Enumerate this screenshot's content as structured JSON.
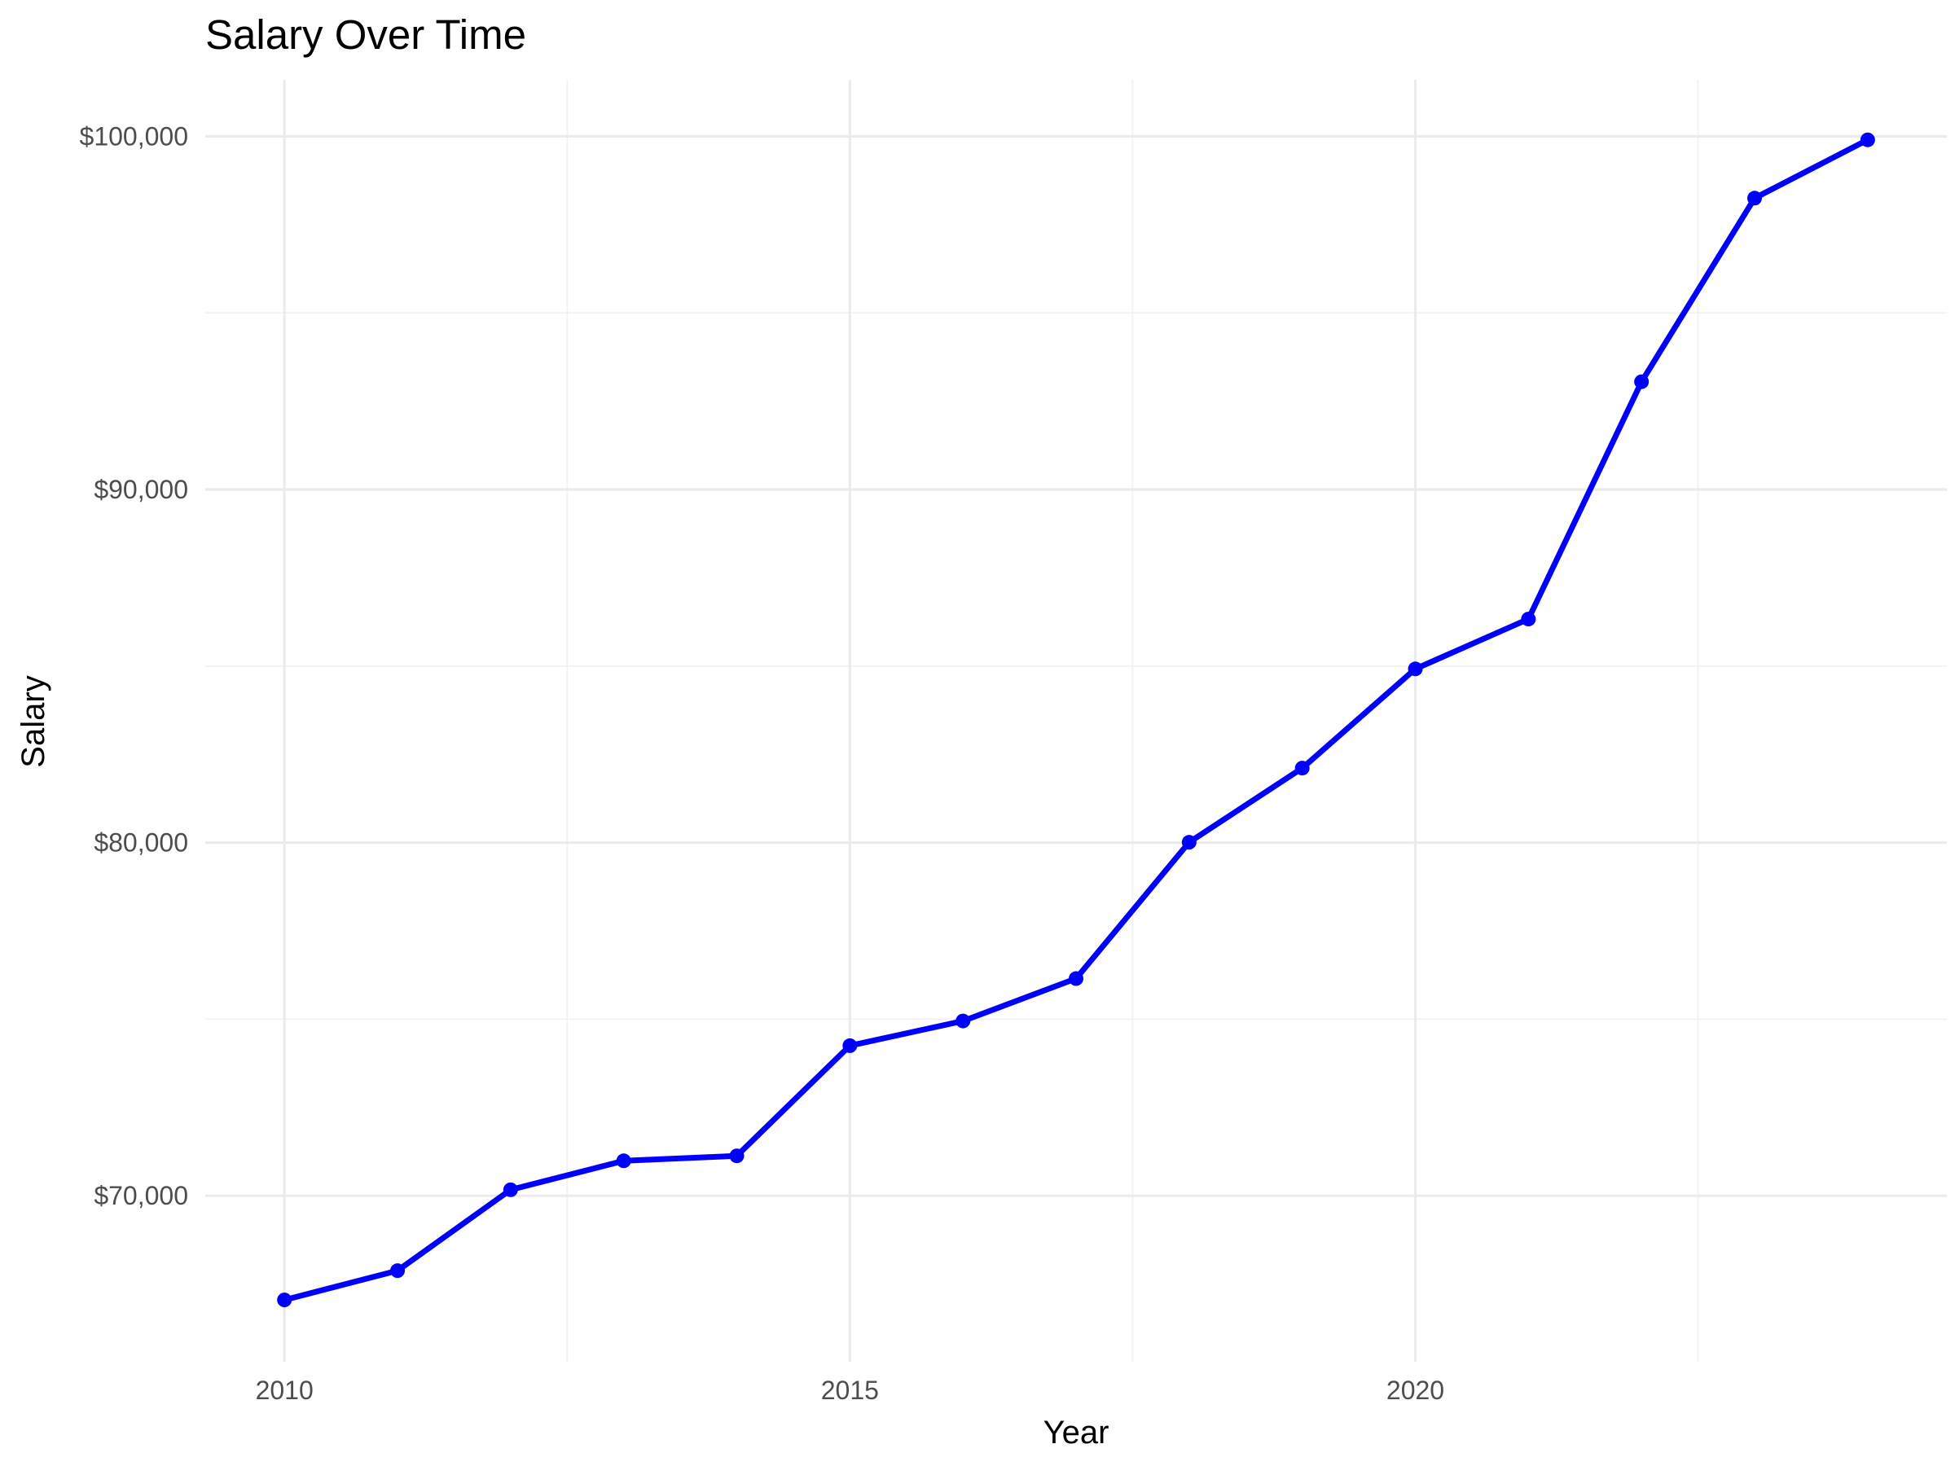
{
  "chart_data": {
    "type": "line",
    "title": "Salary Over Time",
    "xlabel": "Year",
    "ylabel": "Salary",
    "x": [
      2010,
      2011,
      2012,
      2013,
      2014,
      2015,
      2016,
      2017,
      2018,
      2019,
      2020,
      2021,
      2022,
      2023,
      2024
    ],
    "series": [
      {
        "values": [
          67050,
          67880,
          70170,
          70990,
          71130,
          74250,
          74950,
          76150,
          80010,
          82110,
          84920,
          86330,
          93050,
          98250,
          99900
        ]
      }
    ],
    "xlim": [
      2009.3,
      2024.7
    ],
    "ylim": [
      65300,
      101600
    ],
    "x_ticks": [
      2010,
      2015,
      2020
    ],
    "x_tick_labels": [
      "2010",
      "2015",
      "2020"
    ],
    "y_ticks": [
      70000,
      80000,
      90000,
      100000
    ],
    "y_tick_labels": [
      "$70,000",
      "$80,000",
      "$90,000",
      "$100,000"
    ],
    "grid": true,
    "legend": "none",
    "line_color": "#0000ff",
    "marker_color": "#0000ff"
  }
}
